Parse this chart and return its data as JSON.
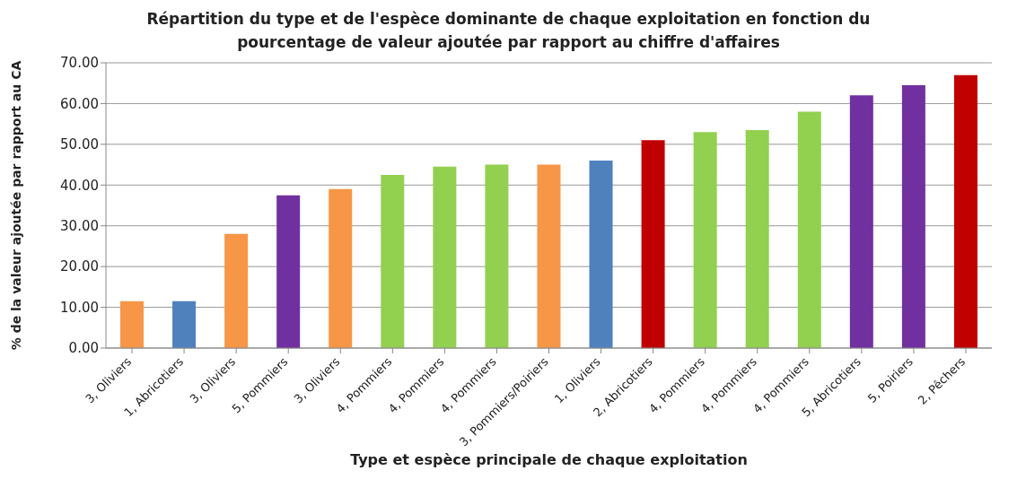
{
  "chart_data": {
    "type": "bar",
    "title": "Répartition du type et de l'espèce dominante de chaque exploitation en fonction du pourcentage de valeur ajoutée par rapport au chiffre d'affaires",
    "xlabel": "Type et espèce principale de chaque exploitation",
    "ylabel": "% de la valeur ajoutée par rapport au CA",
    "categories": [
      "3, Oliviers",
      "1, Abricotiers",
      "3, Oliviers",
      "5, Pommiers",
      "3, Oliviers",
      "4, Pommiers",
      "4, Pommiers",
      "4, Pommiers",
      "3, Pommiers/Poiriers",
      "1, Oliviers",
      "2, Abricotiers",
      "4, Pommiers",
      "4, Pommiers",
      "4, Pommiers",
      "5, Abricotiers",
      "5, Poiriers",
      "2, Pêchers"
    ],
    "values": [
      11.5,
      11.5,
      28,
      37.5,
      39,
      42.5,
      44.5,
      45,
      45,
      46,
      51,
      53,
      53.5,
      58,
      62,
      64.5,
      67
    ],
    "colors": [
      "#f79646",
      "#4f81bd",
      "#f79646",
      "#7030a0",
      "#f79646",
      "#92d050",
      "#92d050",
      "#92d050",
      "#f79646",
      "#4f81bd",
      "#c00000",
      "#92d050",
      "#92d050",
      "#92d050",
      "#7030a0",
      "#7030a0",
      "#c00000"
    ],
    "ylim": [
      0,
      70
    ],
    "yticks": [
      {
        "value": 0,
        "label": "0.00"
      },
      {
        "value": 10,
        "label": "10.00"
      },
      {
        "value": 20,
        "label": "20.00"
      },
      {
        "value": 30,
        "label": "30.00"
      },
      {
        "value": 40,
        "label": "40.00"
      },
      {
        "value": 50,
        "label": "50.00"
      },
      {
        "value": 60,
        "label": "60.00"
      },
      {
        "value": 70,
        "label": "70.00"
      }
    ],
    "grid": "y"
  }
}
